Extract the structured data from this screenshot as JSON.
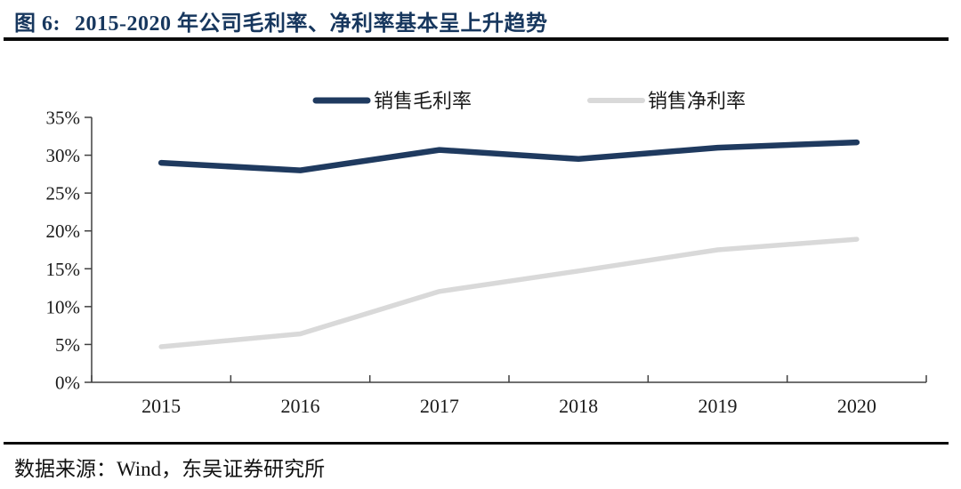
{
  "figure": {
    "label": "图 6:",
    "title": "2015-2020 年公司毛利率、净利率基本呈上升趋势"
  },
  "source": {
    "prefix": "数据来源：",
    "text": "Wind，东吴证券研究所"
  },
  "colors": {
    "title_navy": "#17375e",
    "gross_margin_line": "#1f3a5f",
    "net_margin_line": "#d9d9d9",
    "axis": "#404040",
    "label_text": "#1a1a1a",
    "divider_black": "#0a0a0a"
  },
  "chart_data": {
    "type": "line",
    "title": "2015-2020 年公司毛利率、净利率基本呈上升趋势",
    "categories": [
      "2015",
      "2016",
      "2017",
      "2018",
      "2019",
      "2020"
    ],
    "series": [
      {
        "key": "gross-margin",
        "name": "销售毛利率",
        "color": "#1f3a5f",
        "stroke_width": 6.5,
        "values": [
          29.0,
          28.0,
          30.7,
          29.5,
          31.0,
          31.7
        ]
      },
      {
        "key": "net-margin",
        "name": "销售净利率",
        "color": "#d9d9d9",
        "stroke_width": 5.5,
        "values": [
          4.7,
          6.4,
          12.0,
          14.7,
          17.5,
          18.9
        ]
      }
    ],
    "ylim": [
      0,
      35
    ],
    "ytick_step": 5,
    "ytick_labels": [
      "0%",
      "5%",
      "10%",
      "15%",
      "20%",
      "25%",
      "30%",
      "35%"
    ],
    "unit": "%",
    "grid": false,
    "legend_position": "top-center"
  }
}
